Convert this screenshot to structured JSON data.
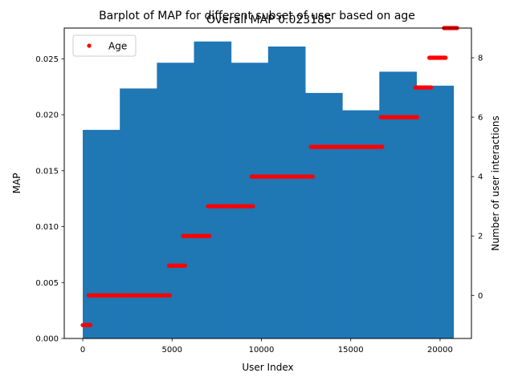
{
  "chart_data": {
    "type": "bar",
    "title": "Barplot of MAP for different subset of user based on age",
    "subtitle": "Overall MAP 0.023185",
    "xlabel": "User Index",
    "ylabel_left": "MAP",
    "ylabel_right": "Number of user interactions",
    "xlim": [
      -1036,
      21756
    ],
    "ylim_left": [
      0,
      0.02775
    ],
    "ylim_right": [
      -1.45,
      9.0
    ],
    "x_ticks": [
      0,
      5000,
      10000,
      15000,
      20000
    ],
    "x_tick_labels": [
      "0",
      "5000",
      "10000",
      "15000",
      "20000"
    ],
    "y_left_ticks": [
      0,
      0.005,
      0.01,
      0.015,
      0.02,
      0.025
    ],
    "y_left_tick_labels": [
      "0.000",
      "0.005",
      "0.010",
      "0.015",
      "0.020",
      "0.025"
    ],
    "y_right_ticks": [
      0,
      2,
      4,
      6,
      8
    ],
    "y_right_tick_labels": [
      "0",
      "2",
      "4",
      "6",
      "8"
    ],
    "bar_color": "#1f77b4",
    "marker_color": "#ff0000",
    "bars": [
      {
        "x0": 0,
        "x1": 2075,
        "value": 0.01865
      },
      {
        "x0": 2075,
        "x1": 4150,
        "value": 0.02235
      },
      {
        "x0": 4150,
        "x1": 6225,
        "value": 0.02465
      },
      {
        "x0": 6225,
        "x1": 8300,
        "value": 0.02655
      },
      {
        "x0": 8300,
        "x1": 10375,
        "value": 0.02465
      },
      {
        "x0": 10375,
        "x1": 12450,
        "value": 0.0261
      },
      {
        "x0": 12450,
        "x1": 14525,
        "value": 0.02195
      },
      {
        "x0": 14525,
        "x1": 16600,
        "value": 0.0204
      },
      {
        "x0": 16600,
        "x1": 18675,
        "value": 0.02385
      },
      {
        "x0": 18675,
        "x1": 20750,
        "value": 0.0226
      }
    ],
    "legend": {
      "placement": "top-left",
      "label": "Age"
    },
    "age_segments": [
      {
        "x0": 0,
        "x1": 430,
        "y": -1
      },
      {
        "x0": 330,
        "x1": 4880,
        "y": 0
      },
      {
        "x0": 4830,
        "x1": 5720,
        "y": 1
      },
      {
        "x0": 5620,
        "x1": 7090,
        "y": 2
      },
      {
        "x0": 7010,
        "x1": 9530,
        "y": 3
      },
      {
        "x0": 9450,
        "x1": 12870,
        "y": 4
      },
      {
        "x0": 12770,
        "x1": 16760,
        "y": 5
      },
      {
        "x0": 16680,
        "x1": 18720,
        "y": 6
      },
      {
        "x0": 18620,
        "x1": 19490,
        "y": 7
      },
      {
        "x0": 19400,
        "x1": 20310,
        "y": 8
      },
      {
        "x0": 20220,
        "x1": 20950,
        "y": 9
      }
    ]
  }
}
